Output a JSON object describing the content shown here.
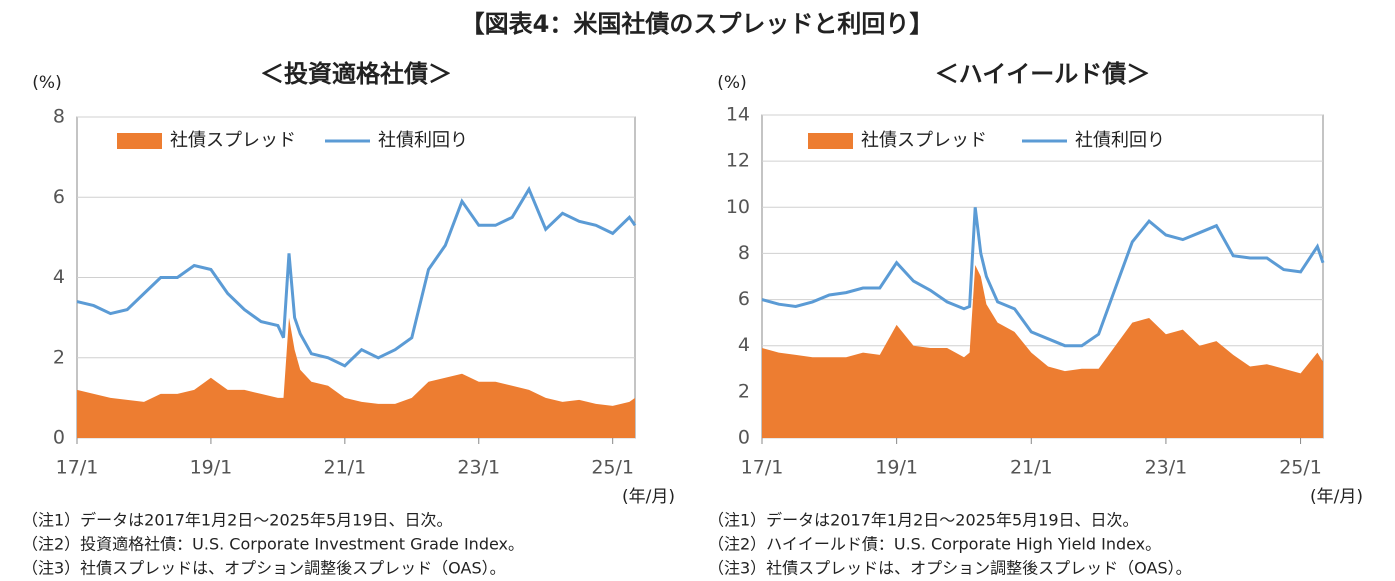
{
  "title": "【図表4：米国社債のスプレッドと利回り】",
  "chart_data": [
    {
      "type": "area-line",
      "title": "＜投資適格社債＞",
      "ylabel": "(%)",
      "xlabel": "(年/月)",
      "grid": true,
      "x": [
        "2017-01",
        "2017-04",
        "2017-07",
        "2017-10",
        "2018-01",
        "2018-04",
        "2018-07",
        "2018-10",
        "2019-01",
        "2019-04",
        "2019-07",
        "2019-10",
        "2020-01",
        "2020-02",
        "2020-03",
        "2020-04",
        "2020-05",
        "2020-07",
        "2020-10",
        "2021-01",
        "2021-04",
        "2021-07",
        "2021-10",
        "2022-01",
        "2022-04",
        "2022-07",
        "2022-10",
        "2023-01",
        "2023-04",
        "2023-07",
        "2023-10",
        "2024-01",
        "2024-04",
        "2024-07",
        "2024-10",
        "2025-01",
        "2025-04",
        "2025-05"
      ],
      "xlim": [
        "2017-01",
        "2025-05"
      ],
      "xticks": [
        {
          "value": "2017-01",
          "label": "17/1"
        },
        {
          "value": "2019-01",
          "label": "19/1"
        },
        {
          "value": "2021-01",
          "label": "21/1"
        },
        {
          "value": "2023-01",
          "label": "23/1"
        },
        {
          "value": "2025-01",
          "label": "25/1"
        }
      ],
      "ylim": [
        0,
        8
      ],
      "yticks": [
        0,
        2,
        4,
        6,
        8
      ],
      "series": [
        {
          "name": "社債スプレッド",
          "kind": "area",
          "color": "#ED7D31",
          "values": [
            1.2,
            1.1,
            1.0,
            0.95,
            0.9,
            1.1,
            1.1,
            1.2,
            1.5,
            1.2,
            1.2,
            1.1,
            1.0,
            1.0,
            3.0,
            2.2,
            1.7,
            1.4,
            1.3,
            1.0,
            0.9,
            0.85,
            0.85,
            1.0,
            1.4,
            1.5,
            1.6,
            1.4,
            1.4,
            1.3,
            1.2,
            1.0,
            0.9,
            0.95,
            0.85,
            0.8,
            0.9,
            1.0
          ]
        },
        {
          "name": "社債利回り",
          "kind": "line",
          "color": "#5B9BD5",
          "values": [
            3.4,
            3.3,
            3.1,
            3.2,
            3.6,
            4.0,
            4.0,
            4.3,
            4.2,
            3.6,
            3.2,
            2.9,
            2.8,
            2.5,
            4.6,
            3.0,
            2.6,
            2.1,
            2.0,
            1.8,
            2.2,
            2.0,
            2.2,
            2.5,
            4.2,
            4.8,
            5.9,
            5.3,
            5.3,
            5.5,
            6.2,
            5.2,
            5.6,
            5.4,
            5.3,
            5.1,
            5.5,
            5.3
          ]
        }
      ],
      "notes": [
        "（注1）データは2017年1月2日～2025年5月19日、日次。",
        "（注2）投資適格社債：U.S. Corporate Investment Grade Index。",
        "（注3）社債スプレッドは、オプション調整後スプレッド（OAS）。"
      ]
    },
    {
      "type": "area-line",
      "title": "＜ハイイールド債＞",
      "ylabel": "(%)",
      "xlabel": "(年/月)",
      "grid": true,
      "x": [
        "2017-01",
        "2017-04",
        "2017-07",
        "2017-10",
        "2018-01",
        "2018-04",
        "2018-07",
        "2018-10",
        "2019-01",
        "2019-04",
        "2019-07",
        "2019-10",
        "2020-01",
        "2020-02",
        "2020-03",
        "2020-04",
        "2020-05",
        "2020-07",
        "2020-10",
        "2021-01",
        "2021-04",
        "2021-07",
        "2021-10",
        "2022-01",
        "2022-04",
        "2022-07",
        "2022-10",
        "2023-01",
        "2023-04",
        "2023-07",
        "2023-10",
        "2024-01",
        "2024-04",
        "2024-07",
        "2024-10",
        "2025-01",
        "2025-04",
        "2025-05"
      ],
      "xlim": [
        "2017-01",
        "2025-05"
      ],
      "xticks": [
        {
          "value": "2017-01",
          "label": "17/1"
        },
        {
          "value": "2019-01",
          "label": "19/1"
        },
        {
          "value": "2021-01",
          "label": "21/1"
        },
        {
          "value": "2023-01",
          "label": "23/1"
        },
        {
          "value": "2025-01",
          "label": "25/1"
        }
      ],
      "ylim": [
        0,
        14
      ],
      "yticks": [
        0,
        2,
        4,
        6,
        8,
        10,
        12,
        14
      ],
      "series": [
        {
          "name": "社債スプレッド",
          "kind": "area",
          "color": "#ED7D31",
          "values": [
            3.9,
            3.7,
            3.6,
            3.5,
            3.5,
            3.5,
            3.7,
            3.6,
            4.9,
            4.0,
            3.9,
            3.9,
            3.5,
            3.7,
            7.5,
            7.0,
            5.8,
            5.0,
            4.6,
            3.7,
            3.1,
            2.9,
            3.0,
            3.0,
            4.0,
            5.0,
            5.2,
            4.5,
            4.7,
            4.0,
            4.2,
            3.6,
            3.1,
            3.2,
            3.0,
            2.8,
            3.7,
            3.3
          ]
        },
        {
          "name": "社債利回り",
          "kind": "line",
          "color": "#5B9BD5",
          "values": [
            6.0,
            5.8,
            5.7,
            5.9,
            6.2,
            6.3,
            6.5,
            6.5,
            7.6,
            6.8,
            6.4,
            5.9,
            5.6,
            5.7,
            10.0,
            8.0,
            7.0,
            5.9,
            5.6,
            4.6,
            4.3,
            4.0,
            4.0,
            4.5,
            6.5,
            8.5,
            9.4,
            8.8,
            8.6,
            8.9,
            9.2,
            7.9,
            7.8,
            7.8,
            7.3,
            7.2,
            8.3,
            7.6
          ]
        }
      ],
      "notes": [
        "（注1）データは2017年1月2日～2025年5月19日、日次。",
        "（注2）ハイイールド債：U.S. Corporate High Yield Index。",
        "（注3）社債スプレッドは、オプション調整後スプレッド（OAS）。"
      ]
    }
  ]
}
